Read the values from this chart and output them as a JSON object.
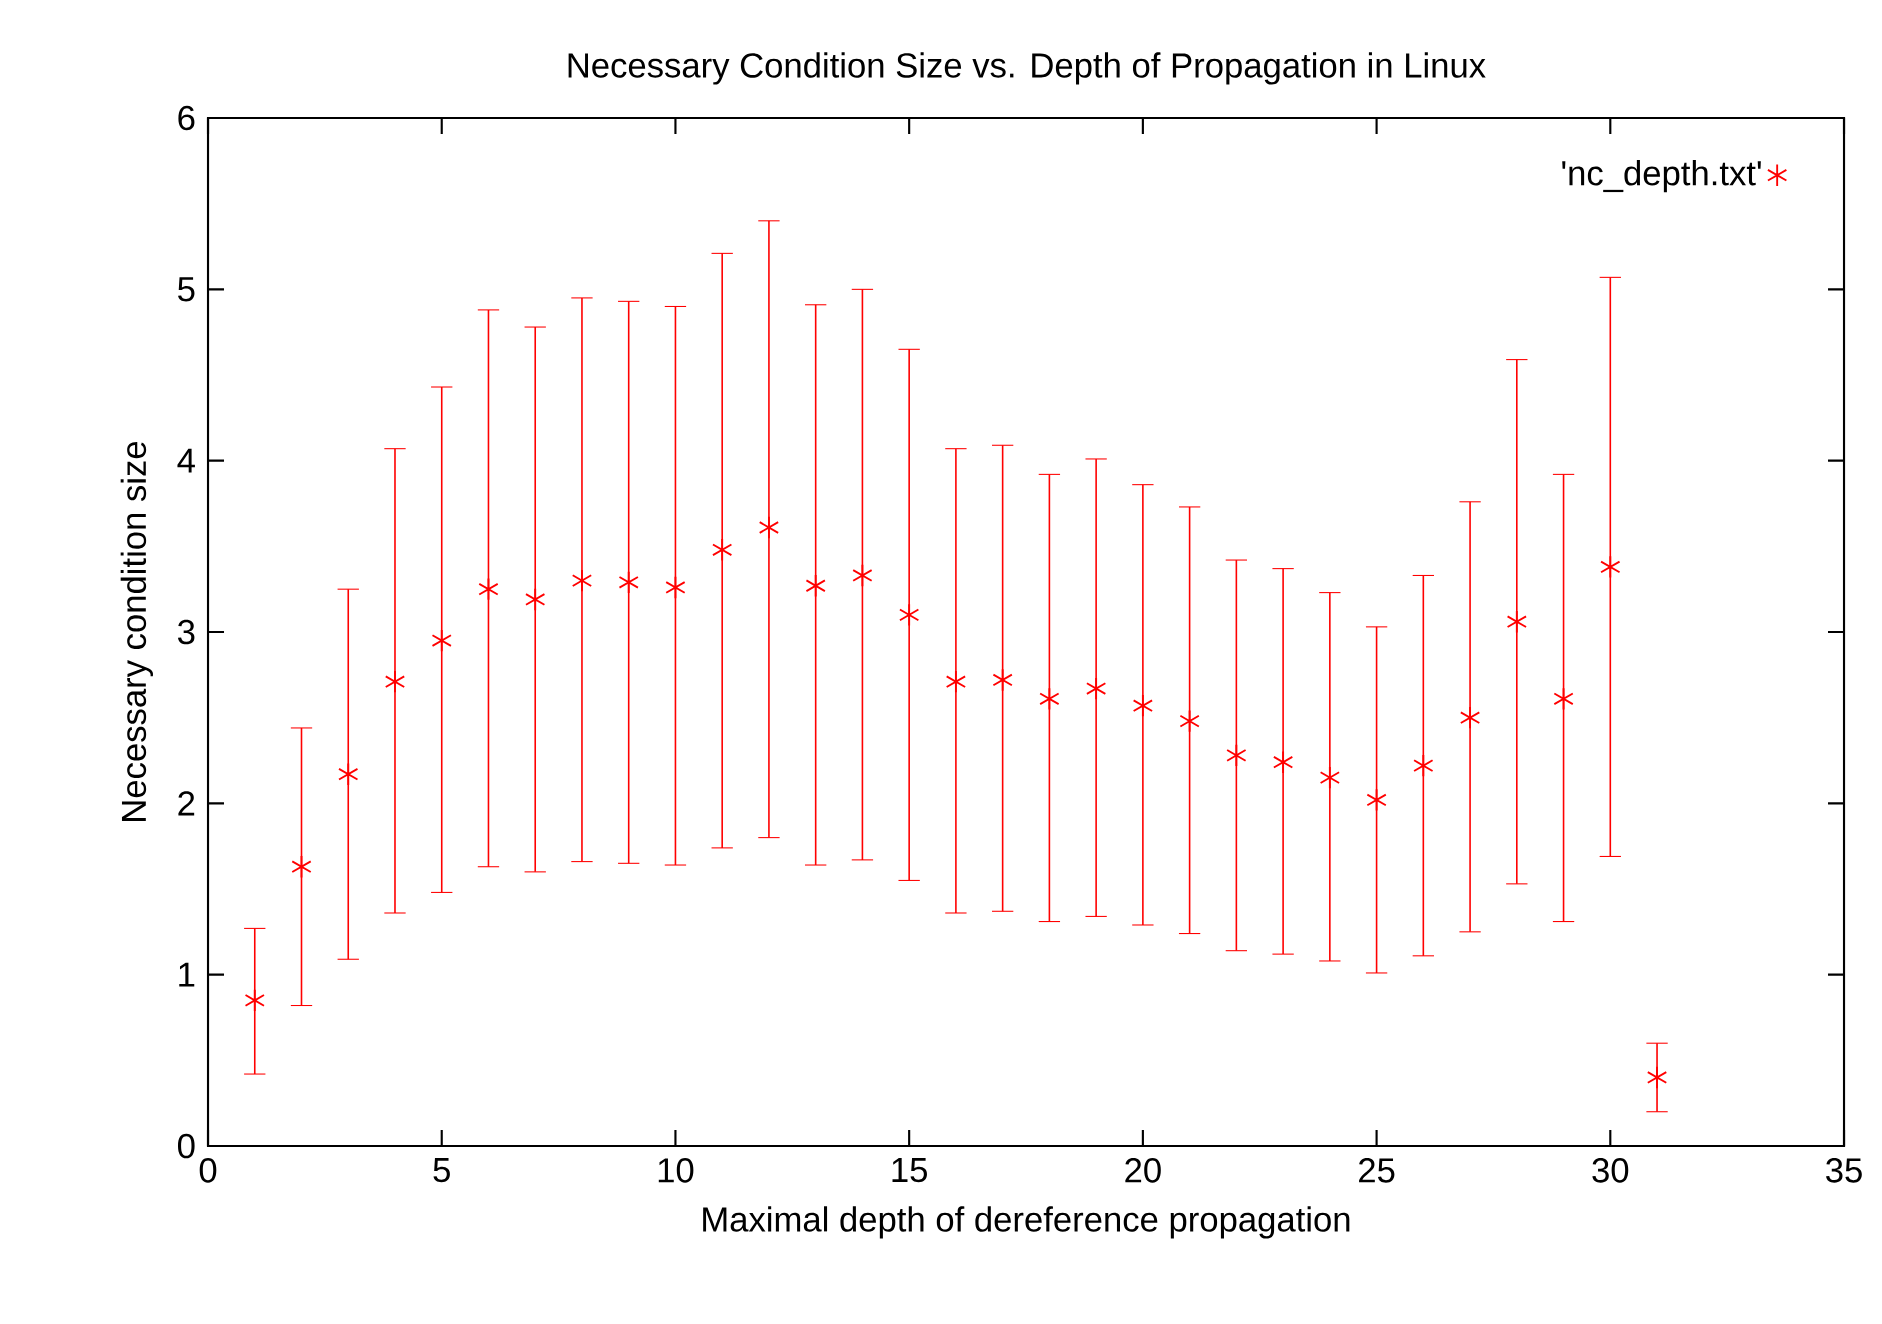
{
  "chart_data": {
    "type": "scatter",
    "title": "Necessary Condition Size vs. Depth of Propagation in Linux",
    "xlabel": "Maximal depth of dereference propagation",
    "ylabel": "Necessary condition size",
    "x": [
      1,
      2,
      3,
      4,
      5,
      6,
      7,
      8,
      9,
      10,
      11,
      12,
      13,
      14,
      15,
      16,
      17,
      18,
      19,
      20,
      21,
      22,
      23,
      24,
      25,
      26,
      27,
      28,
      29,
      30,
      31
    ],
    "series": [
      {
        "name": "'nc_depth.txt'",
        "color": "#ff0000",
        "values": [
          0.85,
          1.63,
          2.17,
          2.71,
          2.95,
          3.25,
          3.19,
          3.3,
          3.29,
          3.26,
          3.48,
          3.61,
          3.27,
          3.33,
          3.1,
          2.71,
          2.72,
          2.61,
          2.67,
          2.57,
          2.48,
          2.28,
          2.24,
          2.15,
          2.02,
          2.22,
          2.5,
          3.06,
          2.61,
          3.38,
          0.4
        ],
        "errors": [
          [
            0.42,
            1.27
          ],
          [
            0.82,
            2.44
          ],
          [
            1.09,
            3.25
          ],
          [
            1.36,
            4.07
          ],
          [
            1.48,
            4.43
          ],
          [
            1.63,
            4.88
          ],
          [
            1.6,
            4.78
          ],
          [
            1.66,
            4.95
          ],
          [
            1.65,
            4.93
          ],
          [
            1.64,
            4.9
          ],
          [
            1.74,
            5.21
          ],
          [
            1.8,
            5.4
          ],
          [
            1.64,
            4.91
          ],
          [
            1.67,
            5.0
          ],
          [
            1.55,
            4.65
          ],
          [
            1.36,
            4.07
          ],
          [
            1.37,
            4.09
          ],
          [
            1.31,
            3.92
          ],
          [
            1.34,
            4.01
          ],
          [
            1.29,
            3.86
          ],
          [
            1.24,
            3.73
          ],
          [
            1.14,
            3.42
          ],
          [
            1.12,
            3.37
          ],
          [
            1.08,
            3.23
          ],
          [
            1.01,
            3.03
          ],
          [
            1.11,
            3.33
          ],
          [
            1.25,
            3.76
          ],
          [
            1.53,
            4.59
          ],
          [
            1.31,
            3.92
          ],
          [
            1.69,
            5.07
          ],
          [
            0.2,
            0.6
          ]
        ]
      }
    ],
    "xlim": [
      0,
      35
    ],
    "xticks": [
      0,
      5,
      10,
      15,
      20,
      25,
      30,
      35
    ],
    "ylim": [
      0,
      6
    ],
    "yticks": [
      0,
      1,
      2,
      3,
      4,
      5,
      6
    ],
    "marker": "cross",
    "legend": "top right"
  }
}
